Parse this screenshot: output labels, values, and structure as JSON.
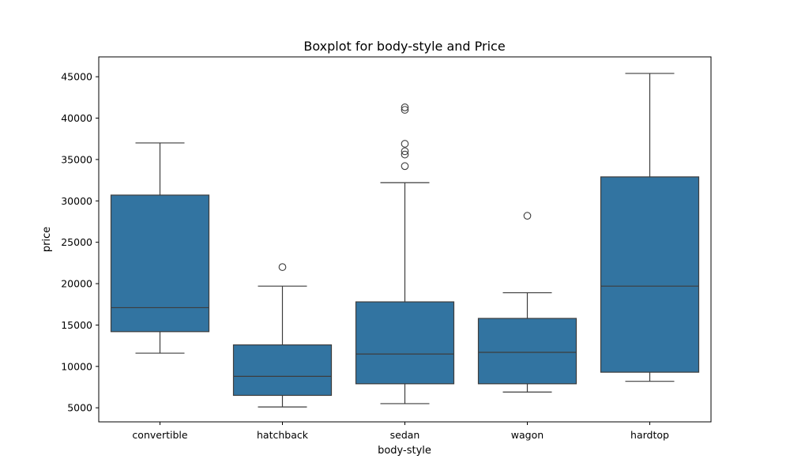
{
  "chart_data": {
    "type": "box",
    "title": "Boxplot for body-style and Price",
    "xlabel": "body-style",
    "ylabel": "price",
    "ylim": [
      3300,
      47400
    ],
    "yticks": [
      5000,
      10000,
      15000,
      20000,
      25000,
      30000,
      35000,
      40000,
      45000
    ],
    "grid": false,
    "color": "#3274a1",
    "line_color": "#3d3d3d",
    "categories": [
      "convertible",
      "hatchback",
      "sedan",
      "wagon",
      "hardtop"
    ],
    "boxes": [
      {
        "category": "convertible",
        "whisker_low": 11600,
        "q1": 14200,
        "median": 17100,
        "q3": 30700,
        "whisker_high": 37000,
        "outliers": []
      },
      {
        "category": "hatchback",
        "whisker_low": 5100,
        "q1": 6500,
        "median": 8800,
        "q3": 12600,
        "whisker_high": 19700,
        "outliers": [
          22000
        ]
      },
      {
        "category": "sedan",
        "whisker_low": 5500,
        "q1": 7900,
        "median": 11500,
        "q3": 17800,
        "whisker_high": 32200,
        "outliers": [
          34200,
          35600,
          36000,
          36900,
          41000,
          41300
        ]
      },
      {
        "category": "wagon",
        "whisker_low": 6900,
        "q1": 7900,
        "median": 11700,
        "q3": 15800,
        "whisker_high": 18900,
        "outliers": [
          28200
        ]
      },
      {
        "category": "hardtop",
        "whisker_low": 8200,
        "q1": 9300,
        "median": 19700,
        "q3": 32900,
        "whisker_high": 45400,
        "outliers": []
      }
    ]
  }
}
